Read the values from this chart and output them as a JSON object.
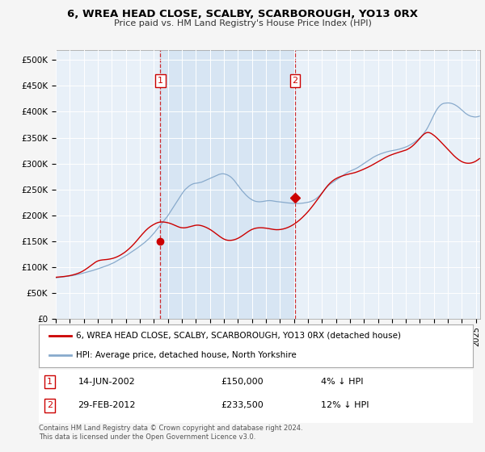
{
  "title": "6, WREA HEAD CLOSE, SCALBY, SCARBOROUGH, YO13 0RX",
  "subtitle": "Price paid vs. HM Land Registry's House Price Index (HPI)",
  "ylabel_ticks": [
    0,
    50000,
    100000,
    150000,
    200000,
    250000,
    300000,
    350000,
    400000,
    450000,
    500000
  ],
  "ylabel_labels": [
    "£0",
    "£50K",
    "£100K",
    "£150K",
    "£200K",
    "£250K",
    "£300K",
    "£350K",
    "£400K",
    "£450K",
    "£500K"
  ],
  "ylim": [
    0,
    520000
  ],
  "xlim_start": 1995.0,
  "xlim_end": 2025.3,
  "background_color": "#e8f0f8",
  "shade_color": "#ccdff0",
  "outer_bg_color": "#f5f5f5",
  "line_color_property": "#cc0000",
  "line_color_hpi": "#88aacc",
  "marker_color": "#cc0000",
  "sale1_x": 2002.46,
  "sale1_y": 150000,
  "sale2_x": 2012.08,
  "sale2_y": 233500,
  "legend_property": "6, WREA HEAD CLOSE, SCALBY, SCARBOROUGH, YO13 0RX (detached house)",
  "legend_hpi": "HPI: Average price, detached house, North Yorkshire",
  "table_row1": [
    "1",
    "14-JUN-2002",
    "£150,000",
    "4% ↓ HPI"
  ],
  "table_row2": [
    "2",
    "29-FEB-2012",
    "£233,500",
    "12% ↓ HPI"
  ],
  "footnote": "Contains HM Land Registry data © Crown copyright and database right 2024.\nThis data is licensed under the Open Government Licence v3.0.",
  "hpi_monthly": {
    "start_year": 1995,
    "start_month": 1,
    "values": [
      79000,
      79200,
      79500,
      79800,
      80100,
      80400,
      80700,
      81000,
      81300,
      81600,
      81900,
      82200,
      82500,
      82800,
      83200,
      83600,
      84000,
      84500,
      85000,
      85500,
      86000,
      86600,
      87200,
      87800,
      88400,
      89000,
      89600,
      90200,
      90800,
      91400,
      92000,
      92700,
      93400,
      94100,
      94800,
      95500,
      96200,
      97000,
      97800,
      98600,
      99400,
      100200,
      101000,
      101800,
      102600,
      103500,
      104500,
      105500,
      106500,
      107500,
      108500,
      109800,
      111100,
      112400,
      113700,
      115000,
      116300,
      117600,
      118900,
      120200,
      121500,
      123000,
      124500,
      126000,
      127500,
      129000,
      130500,
      132000,
      133500,
      135000,
      136700,
      138400,
      140100,
      141800,
      143500,
      145200,
      147000,
      149000,
      151000,
      153000,
      155000,
      157500,
      160000,
      162500,
      165000,
      167800,
      170600,
      173400,
      176200,
      179000,
      181800,
      184600,
      187400,
      190200,
      193000,
      196000,
      199000,
      202500,
      206000,
      209500,
      213000,
      216500,
      220000,
      223500,
      227000,
      230500,
      234000,
      237500,
      241000,
      244500,
      247500,
      250000,
      252000,
      254000,
      256000,
      257500,
      259000,
      260000,
      261000,
      261500,
      261800,
      262000,
      262500,
      263000,
      263500,
      264000,
      265000,
      266000,
      267000,
      268000,
      269000,
      270000,
      271000,
      272000,
      273000,
      274000,
      275000,
      276000,
      277000,
      278000,
      279000,
      279500,
      280000,
      280200,
      280000,
      279500,
      278800,
      278000,
      276800,
      275500,
      273800,
      271800,
      269500,
      267000,
      264000,
      261000,
      258000,
      255000,
      252000,
      249000,
      246500,
      244000,
      241500,
      239000,
      236800,
      234800,
      233000,
      231500,
      230000,
      228800,
      227800,
      227000,
      226500,
      226200,
      226000,
      226000,
      226200,
      226500,
      226800,
      227200,
      227600,
      228000,
      228200,
      228300,
      228200,
      228000,
      227600,
      227200,
      226800,
      226500,
      226200,
      226000,
      225800,
      225500,
      225200,
      224800,
      224500,
      224200,
      224000,
      223800,
      223600,
      223400,
      223200,
      223000,
      222800,
      222700,
      222600,
      222600,
      222700,
      222800,
      223000,
      223200,
      223500,
      223800,
      224200,
      224600,
      225000,
      225500,
      226200,
      227000,
      228000,
      229200,
      230500,
      232000,
      233800,
      235800,
      238000,
      240500,
      243000,
      245700,
      248400,
      251000,
      253500,
      256000,
      258200,
      260000,
      261500,
      263000,
      264500,
      266000,
      267500,
      269000,
      270600,
      272200,
      273800,
      275400,
      277000,
      278500,
      280000,
      281500,
      282800,
      284000,
      285000,
      286000,
      287000,
      288000,
      289000,
      290000,
      291200,
      292500,
      294000,
      295500,
      297000,
      298500,
      300000,
      301500,
      303000,
      304500,
      306000,
      307500,
      309000,
      310500,
      312000,
      313200,
      314400,
      315500,
      316500,
      317500,
      318400,
      319200,
      320000,
      320800,
      321500,
      322200,
      322800,
      323400,
      323900,
      324400,
      324800,
      325200,
      325600,
      326000,
      326500,
      327000,
      327600,
      328200,
      328900,
      329600,
      330400,
      331200,
      332000,
      333000,
      334000,
      335200,
      336500,
      337800,
      339200,
      340700,
      342300,
      344000,
      345800,
      347700,
      349700,
      352000,
      354500,
      357200,
      360200,
      363400,
      367000,
      371000,
      375400,
      380000,
      384800,
      389600,
      394200,
      398500,
      402500,
      406000,
      409000,
      411500,
      413500,
      415000,
      416000,
      416500,
      416800,
      417000,
      417100,
      417000,
      416700,
      416200,
      415500,
      414600,
      413500,
      412200,
      410700,
      409000,
      407200,
      405200,
      403100,
      401000,
      399000,
      397200,
      395600,
      394200,
      393000,
      392000,
      391200,
      390700,
      390300,
      390000,
      390000,
      390300,
      390800,
      391600
    ]
  },
  "property_monthly": {
    "start_year": 1995,
    "start_month": 1,
    "values": [
      80000,
      80200,
      80400,
      80600,
      80800,
      81000,
      81200,
      81500,
      81800,
      82100,
      82400,
      82800,
      83200,
      83700,
      84200,
      84800,
      85400,
      86100,
      86800,
      87600,
      88500,
      89500,
      90600,
      91800,
      93100,
      94500,
      96000,
      97600,
      99200,
      100900,
      102600,
      104400,
      106200,
      107800,
      109200,
      110500,
      111500,
      112300,
      112900,
      113300,
      113600,
      113800,
      114000,
      114200,
      114500,
      114800,
      115200,
      115600,
      116100,
      116700,
      117400,
      118200,
      119100,
      120100,
      121200,
      122400,
      123700,
      125100,
      126600,
      128100,
      129800,
      131700,
      133600,
      135600,
      137700,
      139900,
      142200,
      144600,
      147100,
      149700,
      152400,
      155100,
      157800,
      160400,
      163000,
      165500,
      168000,
      170300,
      172500,
      174500,
      176300,
      178000,
      179500,
      180900,
      182200,
      183400,
      184500,
      185400,
      186100,
      186600,
      186900,
      187000,
      186900,
      186700,
      186400,
      186000,
      185500,
      184900,
      184200,
      183400,
      182500,
      181500,
      180500,
      179500,
      178500,
      177600,
      176800,
      176200,
      175800,
      175600,
      175600,
      175800,
      176200,
      176700,
      177300,
      177900,
      178500,
      179100,
      179700,
      180200,
      180600,
      180800,
      180800,
      180600,
      180200,
      179700,
      179000,
      178200,
      177300,
      176300,
      175200,
      174000,
      172700,
      171300,
      169800,
      168200,
      166500,
      164800,
      163100,
      161400,
      159700,
      158100,
      156600,
      155200,
      154000,
      153000,
      152200,
      151700,
      151400,
      151300,
      151400,
      151700,
      152100,
      152700,
      153400,
      154300,
      155300,
      156500,
      157800,
      159200,
      160700,
      162300,
      163900,
      165500,
      167100,
      168600,
      170000,
      171300,
      172400,
      173300,
      174100,
      174700,
      175200,
      175500,
      175700,
      175800,
      175800,
      175700,
      175500,
      175300,
      175000,
      174700,
      174300,
      173900,
      173500,
      173100,
      172700,
      172400,
      172200,
      172000,
      172000,
      172100,
      172300,
      172600,
      173000,
      173500,
      174100,
      174800,
      175600,
      176500,
      177500,
      178600,
      179800,
      181100,
      182500,
      184000,
      185600,
      187300,
      189100,
      191000,
      193000,
      195100,
      197300,
      199500,
      201800,
      204200,
      206700,
      209300,
      212000,
      214800,
      217700,
      220600,
      223600,
      226600,
      229700,
      232800,
      236000,
      239200,
      242400,
      245600,
      248700,
      251700,
      254600,
      257300,
      259800,
      262100,
      264200,
      266100,
      267800,
      269300,
      270600,
      271800,
      272900,
      273900,
      274800,
      275600,
      276400,
      277100,
      277800,
      278400,
      279000,
      279600,
      280100,
      280600,
      281100,
      281600,
      282200,
      282900,
      283700,
      284500,
      285400,
      286300,
      287200,
      288200,
      289200,
      290200,
      291200,
      292300,
      293400,
      294500,
      295700,
      296900,
      298200,
      299500,
      300800,
      302100,
      303400,
      304700,
      306000,
      307300,
      308600,
      309800,
      311000,
      312200,
      313300,
      314400,
      315400,
      316300,
      317200,
      318000,
      318800,
      319600,
      320300,
      321000,
      321700,
      322400,
      323100,
      323800,
      324500,
      325200,
      326000,
      327000,
      328200,
      329500,
      331000,
      332700,
      334600,
      336700,
      338900,
      341300,
      343800,
      346400,
      348900,
      351400,
      353700,
      355800,
      357600,
      358900,
      359800,
      360000,
      359700,
      358800,
      357600,
      356100,
      354400,
      352500,
      350500,
      348400,
      346200,
      343900,
      341600,
      339200,
      336800,
      334400,
      331900,
      329500,
      327000,
      324600,
      322200,
      319900,
      317600,
      315400,
      313300,
      311300,
      309400,
      307700,
      306100,
      304700,
      303500,
      302500,
      301700,
      301100,
      300700,
      300500,
      300500,
      300700,
      301100,
      301700,
      302500,
      303500,
      304700,
      306100,
      307700,
      309500
    ]
  }
}
